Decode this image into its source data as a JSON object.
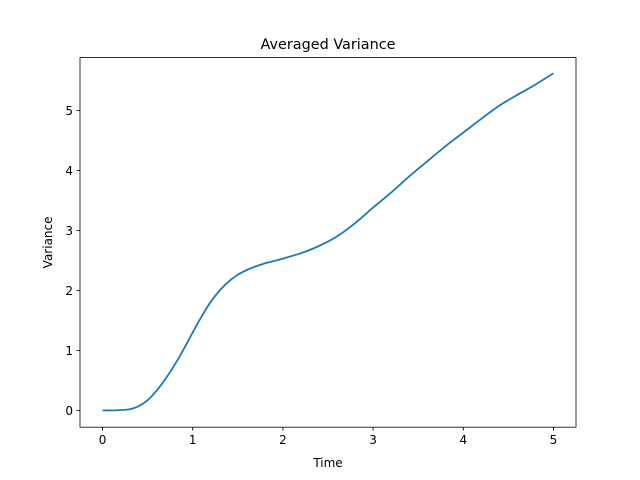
{
  "chart_data": {
    "type": "line",
    "title": "Averaged Variance",
    "xlabel": "Time",
    "ylabel": "Variance",
    "xlim": [
      -0.25,
      5.25
    ],
    "ylim": [
      -0.28,
      5.88
    ],
    "xticks": [
      0,
      1,
      2,
      3,
      4,
      5
    ],
    "yticks": [
      0,
      1,
      2,
      3,
      4,
      5
    ],
    "grid": false,
    "series": [
      {
        "color": "#1f77b4",
        "x": [
          0,
          0.1,
          0.2,
          0.3,
          0.4,
          0.5,
          0.6,
          0.7,
          0.8,
          0.9,
          1.0,
          1.1,
          1.2,
          1.3,
          1.4,
          1.5,
          1.6,
          1.7,
          1.8,
          1.9,
          2.0,
          2.2,
          2.4,
          2.6,
          2.8,
          3.0,
          3.2,
          3.4,
          3.6,
          3.8,
          4.0,
          4.2,
          4.4,
          4.6,
          4.8,
          5.0
        ],
        "y": [
          0,
          0,
          0.005,
          0.02,
          0.07,
          0.17,
          0.33,
          0.53,
          0.76,
          1.02,
          1.3,
          1.57,
          1.81,
          2.0,
          2.15,
          2.26,
          2.34,
          2.4,
          2.45,
          2.49,
          2.53,
          2.62,
          2.74,
          2.9,
          3.12,
          3.38,
          3.63,
          3.9,
          4.15,
          4.4,
          4.63,
          4.86,
          5.08,
          5.26,
          5.43,
          5.62
        ]
      }
    ]
  }
}
